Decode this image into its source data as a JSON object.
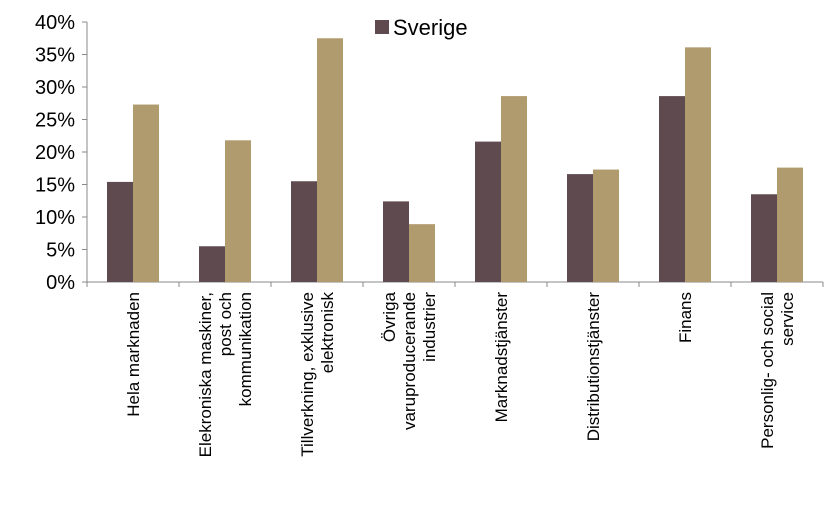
{
  "chart_data": {
    "type": "bar",
    "categories": [
      [
        "Hela marknaden"
      ],
      [
        "Elekroniska maskiner,",
        "post och",
        "kommunikation"
      ],
      [
        "Tillverkning, exklusive",
        "elektronisk"
      ],
      [
        "Övriga",
        "varuproducerande",
        "industrier"
      ],
      [
        "Marknadstjänster"
      ],
      [
        "Distributionstjänster"
      ],
      [
        "Finans"
      ],
      [
        "Personlig- och social",
        "service"
      ]
    ],
    "series": [
      {
        "name": "Sverige",
        "color": "#5e4a4f",
        "values": [
          15.4,
          5.5,
          15.5,
          12.4,
          21.6,
          16.6,
          28.6,
          13.5
        ]
      },
      {
        "color": "#b09b6e",
        "values": [
          27.3,
          21.8,
          37.5,
          8.9,
          28.6,
          17.3,
          36.1,
          17.6
        ]
      }
    ],
    "yticks": [
      "0%",
      "5%",
      "10%",
      "15%",
      "20%",
      "25%",
      "30%",
      "35%",
      "40%"
    ],
    "ylim": [
      0,
      40
    ],
    "legend": {
      "placement": "top-center"
    }
  }
}
